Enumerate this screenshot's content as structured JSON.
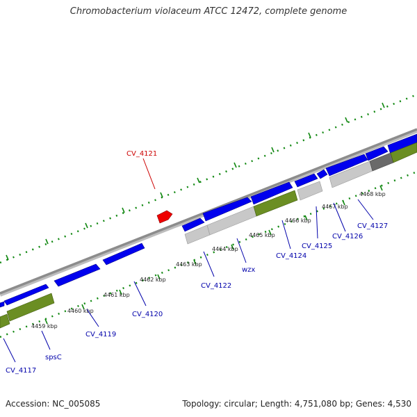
{
  "map": {
    "title": "Chromobacterium violaceum ATCC 12472, complete genome",
    "accession_label": "Accession: NC_005085",
    "stats_label": "Topology: circular; Length: 4,751,080 bp; Genes: 4,530"
  },
  "colors": {
    "backbone": "#8c8c8c",
    "cds_forward": "#0000ee",
    "highlight": "#ee0000",
    "annotated_feature": "#6b8e23",
    "unannotated_feature": "#c8c8c8",
    "dark_feature": "#6a6a6a",
    "dotted_guides": "#118811",
    "label_blue": "#0000aa",
    "label_red": "#cc0000"
  },
  "tick_labels": [
    "4459 kbp",
    "4460 kbp",
    "4461 kbp",
    "4462 kbp",
    "4463 kbp",
    "4464 kbp",
    "4465 kbp",
    "4466 kbp",
    "4467 kbp",
    "4468 kbp"
  ],
  "gene_labels": [
    {
      "text": "CV_4117",
      "color": "blue"
    },
    {
      "text": "spsC",
      "color": "blue"
    },
    {
      "text": "CV_4119",
      "color": "blue"
    },
    {
      "text": "CV_4120",
      "color": "blue"
    },
    {
      "text": "CV_4121",
      "color": "red"
    },
    {
      "text": "CV_4122",
      "color": "blue"
    },
    {
      "text": "wzx",
      "color": "blue"
    },
    {
      "text": "CV_4124",
      "color": "blue"
    },
    {
      "text": "CV_4125",
      "color": "blue"
    },
    {
      "text": "CV_4126",
      "color": "blue"
    },
    {
      "text": "CV_4127",
      "color": "blue"
    }
  ]
}
